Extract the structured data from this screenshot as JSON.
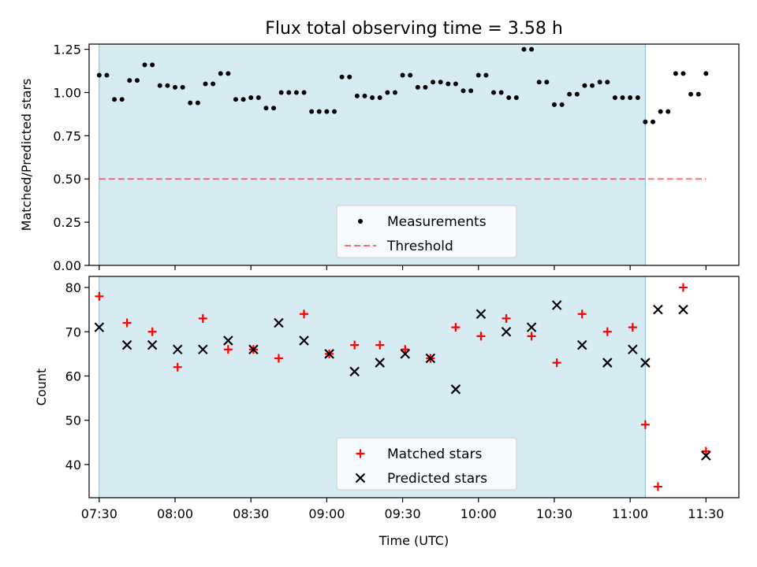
{
  "title": "Flux total observing time = 3.58 h",
  "colors": {
    "shade": "#add8e6",
    "threshold": "#ff0000",
    "matched": "#ff0000",
    "predicted": "#000000",
    "points": "#000000"
  },
  "chart_data": [
    {
      "type": "scatter",
      "title": "Flux total observing time = 3.58 h",
      "xlabel": "",
      "ylabel": "Matched/Predicted stars",
      "x_axis": "time (UTC)",
      "xlim": [
        "07:26",
        "11:43"
      ],
      "ylim": [
        0,
        1.28
      ],
      "yticks": [
        0.0,
        0.25,
        0.5,
        0.75,
        1.0,
        1.25
      ],
      "ytick_labels": [
        "0.00",
        "0.25",
        "0.50",
        "0.75",
        "1.00",
        "1.25"
      ],
      "shaded_region": [
        "07:30",
        "11:06"
      ],
      "legend_position": "lower-center",
      "series": [
        {
          "name": "Measurements",
          "marker": "dot",
          "x": [
            "07:30",
            "07:33",
            "07:36",
            "07:39",
            "07:42",
            "07:45",
            "07:48",
            "07:51",
            "07:54",
            "07:57",
            "08:00",
            "08:03",
            "08:06",
            "08:09",
            "08:12",
            "08:15",
            "08:18",
            "08:21",
            "08:24",
            "08:27",
            "08:30",
            "08:33",
            "08:36",
            "08:39",
            "08:42",
            "08:45",
            "08:48",
            "08:51",
            "08:54",
            "08:57",
            "09:00",
            "09:03",
            "09:06",
            "09:09",
            "09:12",
            "09:15",
            "09:18",
            "09:21",
            "09:24",
            "09:27",
            "09:30",
            "09:33",
            "09:36",
            "09:39",
            "09:42",
            "09:45",
            "09:48",
            "09:51",
            "09:54",
            "09:57",
            "10:00",
            "10:03",
            "10:06",
            "10:09",
            "10:12",
            "10:15",
            "10:18",
            "10:21",
            "10:24",
            "10:27",
            "10:30",
            "10:33",
            "10:36",
            "10:39",
            "10:42",
            "10:45",
            "10:48",
            "10:51",
            "10:54",
            "10:57",
            "11:00",
            "11:03",
            "11:06",
            "11:09",
            "11:12",
            "11:15",
            "11:18",
            "11:21",
            "11:24",
            "11:27",
            "11:30"
          ],
          "y": [
            1.1,
            1.1,
            0.96,
            0.96,
            1.07,
            1.07,
            1.16,
            1.16,
            1.04,
            1.04,
            1.03,
            1.03,
            0.94,
            0.94,
            1.05,
            1.05,
            1.11,
            1.11,
            0.96,
            0.96,
            0.97,
            0.97,
            0.91,
            0.91,
            1.0,
            1.0,
            1.0,
            1.0,
            0.89,
            0.89,
            0.89,
            0.89,
            1.09,
            1.09,
            0.98,
            0.98,
            0.97,
            0.97,
            1.0,
            1.0,
            1.1,
            1.1,
            1.03,
            1.03,
            1.06,
            1.06,
            1.05,
            1.05,
            1.01,
            1.01,
            1.1,
            1.1,
            1.0,
            1.0,
            0.97,
            0.97,
            1.25,
            1.25,
            1.06,
            1.06,
            0.93,
            0.93,
            0.99,
            0.99,
            1.04,
            1.04,
            1.06,
            1.06,
            0.97,
            0.97,
            0.97,
            0.97,
            0.83,
            0.83,
            0.89,
            0.89,
            1.11,
            1.11,
            0.99,
            0.99,
            1.11
          ]
        },
        {
          "name": "Threshold",
          "style": "dashed",
          "x": [
            "07:30",
            "11:30"
          ],
          "y": [
            0.5,
            0.5
          ]
        }
      ]
    },
    {
      "type": "scatter",
      "xlabel": "Time (UTC)",
      "ylabel": "Count",
      "xlim": [
        "07:26",
        "11:43"
      ],
      "ylim": [
        32.5,
        82.5
      ],
      "yticks": [
        40,
        50,
        60,
        70,
        80
      ],
      "xticks": [
        "07:30",
        "08:00",
        "08:30",
        "09:00",
        "09:30",
        "10:00",
        "10:30",
        "11:00",
        "11:30"
      ],
      "shaded_region": [
        "07:30",
        "11:06"
      ],
      "legend_position": "lower-center",
      "series": [
        {
          "name": "Matched stars",
          "marker": "plus",
          "x": [
            "07:30",
            "07:41",
            "07:51",
            "08:01",
            "08:11",
            "08:21",
            "08:31",
            "08:41",
            "08:51",
            "09:01",
            "09:11",
            "09:21",
            "09:31",
            "09:41",
            "09:51",
            "10:01",
            "10:11",
            "10:21",
            "10:31",
            "10:41",
            "10:51",
            "11:01",
            "11:06",
            "11:11",
            "11:21",
            "11:30"
          ],
          "y": [
            78,
            72,
            70,
            62,
            73,
            66,
            66,
            64,
            74,
            65,
            67,
            67,
            66,
            64,
            71,
            69,
            73,
            69,
            63,
            74,
            70,
            71,
            49,
            35,
            80,
            43
          ]
        },
        {
          "name": "Predicted stars",
          "marker": "x",
          "x": [
            "07:30",
            "07:41",
            "07:51",
            "08:01",
            "08:11",
            "08:21",
            "08:31",
            "08:41",
            "08:51",
            "09:01",
            "09:11",
            "09:21",
            "09:31",
            "09:41",
            "09:51",
            "10:01",
            "10:11",
            "10:21",
            "10:31",
            "10:41",
            "10:51",
            "11:01",
            "11:06",
            "11:11",
            "11:21",
            "11:30"
          ],
          "y": [
            71,
            67,
            67,
            66,
            66,
            68,
            66,
            72,
            68,
            65,
            61,
            63,
            65,
            64,
            57,
            74,
            70,
            71,
            76,
            67,
            63,
            66,
            63,
            75,
            75,
            42
          ]
        }
      ]
    }
  ]
}
